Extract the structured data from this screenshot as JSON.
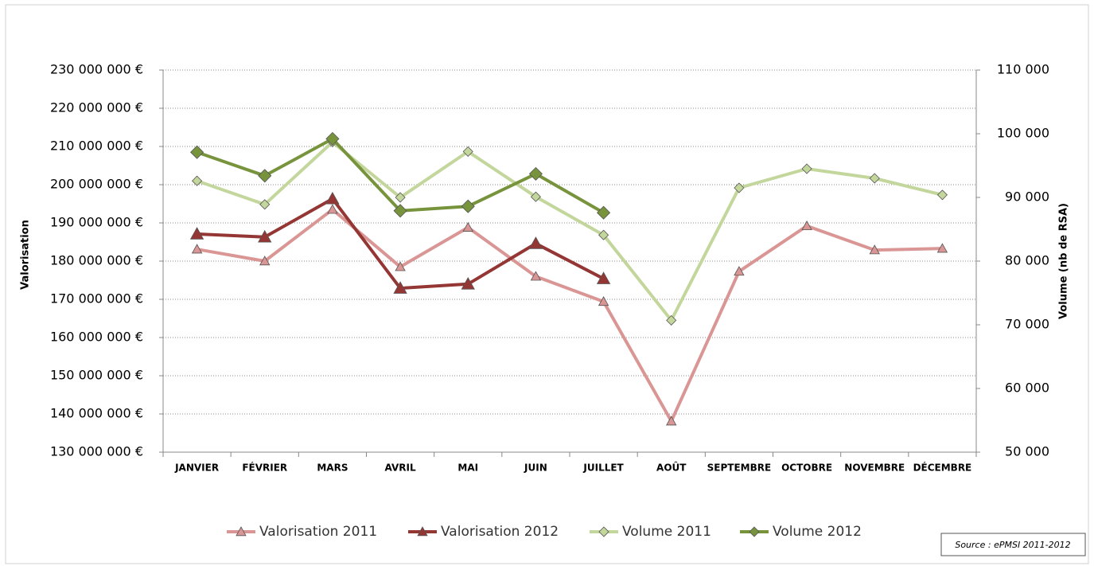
{
  "chart_data": {
    "type": "line",
    "x_label": "",
    "y_label": "Valorisation",
    "y2_label": "Volume (nb de RSA)",
    "source": "Source : ePMSI 2011-2012",
    "categories": [
      "JANVIER",
      "FÉVRIER",
      "MARS",
      "AVRIL",
      "MAI",
      "JUIN",
      "JUILLET",
      "AOÛT",
      "SEPTEMBRE",
      "OCTOBRE",
      "NOVEMBRE",
      "DÉCEMBRE"
    ],
    "series": [
      {
        "name": "Valorisation 2011",
        "color": "#d99694",
        "marker": "triangle",
        "axis": "y",
        "values": [
          183100000,
          180000000,
          193500000,
          178500000,
          188800000,
          176000000,
          169400000,
          138100000,
          177300000,
          189200000,
          182900000,
          183300000
        ]
      },
      {
        "name": "Valorisation 2012",
        "color": "#943634",
        "marker": "triangle",
        "axis": "y",
        "values": [
          187100000,
          186300000,
          196300000,
          172900000,
          174000000,
          184600000,
          175400000,
          null,
          null,
          null,
          null,
          null
        ]
      },
      {
        "name": "Volume 2011",
        "color": "#c3d69b",
        "marker": "diamond",
        "axis": "y2",
        "values": [
          92600,
          88900,
          98700,
          90000,
          97200,
          90100,
          84100,
          70700,
          91500,
          94500,
          93000,
          90400
        ]
      },
      {
        "name": "Volume 2012",
        "color": "#77933c",
        "marker": "diamond",
        "axis": "y2",
        "values": [
          97100,
          93400,
          99200,
          87900,
          88600,
          93700,
          87600,
          null,
          null,
          null,
          null,
          null
        ]
      }
    ],
    "ylim": [
      130000000,
      230000000
    ],
    "yticks": [
      {
        "value": 130000000,
        "label": "130 000 000 €"
      },
      {
        "value": 140000000,
        "label": "140 000 000 €"
      },
      {
        "value": 150000000,
        "label": "150 000 000 €"
      },
      {
        "value": 160000000,
        "label": "160 000 000 €"
      },
      {
        "value": 170000000,
        "label": "170 000 000 €"
      },
      {
        "value": 180000000,
        "label": "180 000 000 €"
      },
      {
        "value": 190000000,
        "label": "190 000 000 €"
      },
      {
        "value": 200000000,
        "label": "200 000 000 €"
      },
      {
        "value": 210000000,
        "label": "210 000 000 €"
      },
      {
        "value": 220000000,
        "label": "220 000 000 €"
      },
      {
        "value": 230000000,
        "label": "230 000 000 €"
      }
    ],
    "y2lim": [
      50000,
      110000
    ],
    "y2ticks": [
      {
        "value": 50000,
        "label": "50 000"
      },
      {
        "value": 60000,
        "label": "60 000"
      },
      {
        "value": 70000,
        "label": "70 000"
      },
      {
        "value": 80000,
        "label": "80 000"
      },
      {
        "value": 90000,
        "label": "90 000"
      },
      {
        "value": 100000,
        "label": "100 000"
      },
      {
        "value": 110000,
        "label": "110 000"
      }
    ],
    "grid": true,
    "legend": "bottom"
  }
}
